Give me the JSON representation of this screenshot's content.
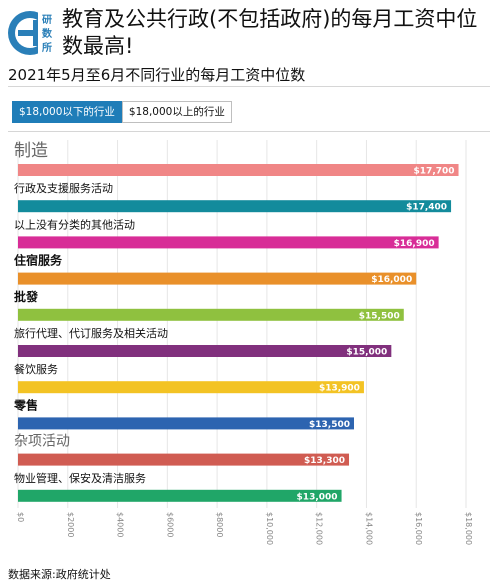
{
  "header": {
    "title": "教育及公共行政(不包括政府)的每月工资中位数最高!",
    "logo_text": "研数所"
  },
  "subtitle": "2021年5月至6月不同行业的每月工资中位数",
  "tabs": [
    {
      "label": "$18,000以下的行业",
      "active": true
    },
    {
      "label": "$18,000以上的行业",
      "active": false
    }
  ],
  "chart_data": {
    "type": "bar",
    "orientation": "horizontal",
    "title": "2021年5月至6月不同行业的每月工资中位数",
    "categories": [
      "制造",
      "行政及支援服务活动",
      "以上没有分类的其他活动",
      "住宿服务",
      "批發",
      "旅行代理、代订服务及相关活动",
      "餐饮服务",
      "零售",
      "杂项活动",
      "物业管理、保安及清洁服务"
    ],
    "values": [
      17700,
      17400,
      16900,
      16000,
      15500,
      15000,
      13900,
      13500,
      13300,
      13000
    ],
    "value_labels": [
      "$17,700",
      "$17,400",
      "$16,900",
      "$16,000",
      "$15,500",
      "$15,000",
      "$13,900",
      "$13,500",
      "$13,300",
      "$13,000"
    ],
    "colors": [
      "#f08686",
      "#138b9c",
      "#d82d97",
      "#e9902a",
      "#8fc13f",
      "#81307d",
      "#f3c324",
      "#2d64b0",
      "#d05c52",
      "#20a668"
    ],
    "xlim": [
      0,
      18000
    ],
    "xticks": [
      0,
      2000,
      4000,
      6000,
      8000,
      10000,
      12000,
      14000,
      16000,
      18000
    ],
    "xtick_labels": [
      "$0",
      "$2000",
      "$4000",
      "$6000",
      "$8000",
      "$10,000",
      "$12,000",
      "$14,000",
      "$16,000",
      "$18,000"
    ],
    "grid": true,
    "legend": "none"
  },
  "source": "数据来源:政府统计处"
}
